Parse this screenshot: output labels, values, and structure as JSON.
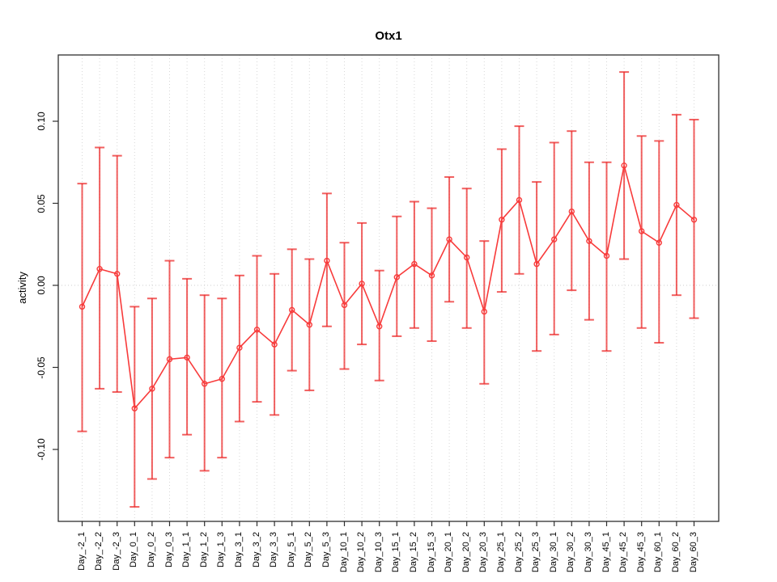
{
  "figure": {
    "title": "Otx1",
    "ylabel": "activity",
    "background": "#ffffff"
  },
  "chart_data": {
    "type": "line",
    "title": "Otx1",
    "xlabel": "",
    "ylabel": "activity",
    "legend": "none",
    "grid": "vertical-dotted-per-category",
    "zero_line": true,
    "error_bars": true,
    "marker": "open-circle",
    "ylim": [
      -0.144,
      0.14
    ],
    "yticks": [
      -0.1,
      -0.05,
      0.0,
      0.05,
      0.1
    ],
    "categories": [
      "Day_-2_1",
      "Day_-2_2",
      "Day_-2_3",
      "Day_0_1",
      "Day_0_2",
      "Day_0_3",
      "Day_1_1",
      "Day_1_2",
      "Day_1_3",
      "Day_3_1",
      "Day_3_2",
      "Day_3_3",
      "Day_5_1",
      "Day_5_2",
      "Day_5_3",
      "Day_10_1",
      "Day_10_2",
      "Day_10_3",
      "Day_15_1",
      "Day_15_2",
      "Day_15_3",
      "Day_20_1",
      "Day_20_2",
      "Day_20_3",
      "Day_25_1",
      "Day_25_2",
      "Day_25_3",
      "Day_30_1",
      "Day_30_2",
      "Day_30_3",
      "Day_45_1",
      "Day_45_2",
      "Day_45_3",
      "Day_60_1",
      "Day_60_2",
      "Day_60_3"
    ],
    "series": [
      {
        "name": "activity",
        "values": [
          -0.013,
          0.01,
          0.007,
          -0.075,
          -0.063,
          -0.045,
          -0.044,
          -0.06,
          -0.057,
          -0.038,
          -0.027,
          -0.036,
          -0.015,
          -0.024,
          0.015,
          -0.012,
          0.001,
          -0.025,
          0.005,
          0.013,
          0.006,
          0.028,
          0.017,
          -0.016,
          0.04,
          0.052,
          0.013,
          0.028,
          0.045,
          0.027,
          0.018,
          0.073,
          0.033,
          0.026,
          0.049,
          0.04
        ],
        "upper": [
          0.062,
          0.084,
          0.079,
          -0.013,
          -0.008,
          0.015,
          0.004,
          -0.006,
          -0.008,
          0.006,
          0.018,
          0.007,
          0.022,
          0.016,
          0.056,
          0.026,
          0.038,
          0.009,
          0.042,
          0.051,
          0.047,
          0.066,
          0.059,
          0.027,
          0.083,
          0.097,
          0.063,
          0.087,
          0.094,
          0.075,
          0.075,
          0.13,
          0.091,
          0.088,
          0.104,
          0.101
        ],
        "lower": [
          -0.089,
          -0.063,
          -0.065,
          -0.135,
          -0.118,
          -0.105,
          -0.091,
          -0.113,
          -0.105,
          -0.083,
          -0.071,
          -0.079,
          -0.052,
          -0.064,
          -0.025,
          -0.051,
          -0.036,
          -0.058,
          -0.031,
          -0.026,
          -0.034,
          -0.01,
          -0.026,
          -0.06,
          -0.004,
          0.007,
          -0.04,
          -0.03,
          -0.003,
          -0.021,
          -0.04,
          0.016,
          -0.026,
          -0.035,
          -0.006,
          -0.02
        ]
      }
    ],
    "colors": {
      "series": "#f83b3b",
      "error_bar": "rgba(235,35,35,0.72)",
      "grid": "#d7d7d7",
      "zero_line": "#cccccc",
      "axis": "#2f2f2f",
      "text": "#000000",
      "background": "#ffffff"
    }
  }
}
